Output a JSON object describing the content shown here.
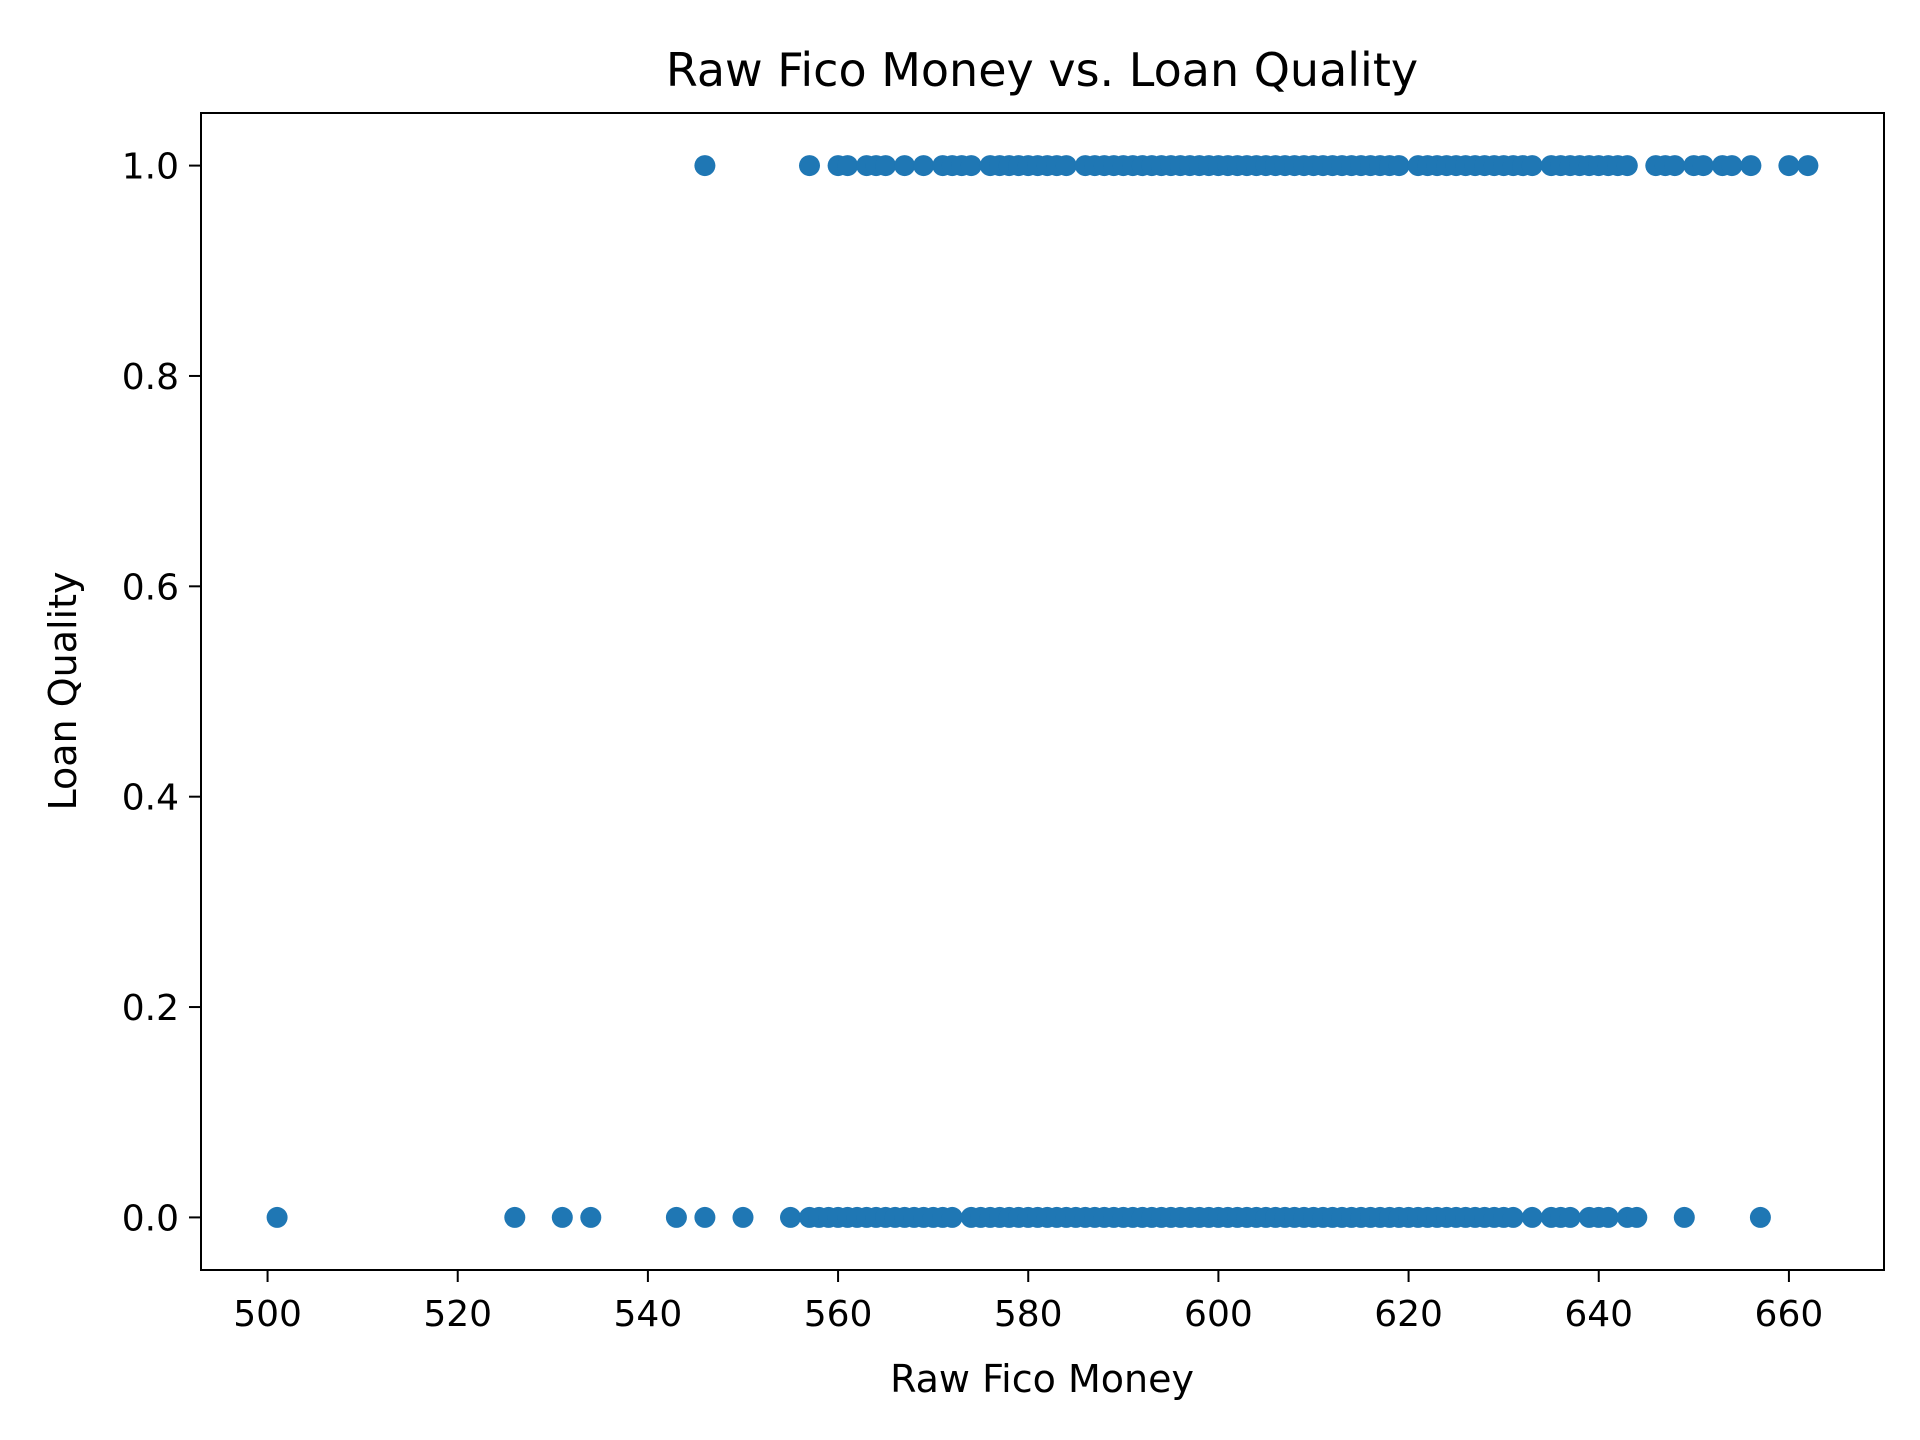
{
  "chart_data": {
    "type": "scatter",
    "title": "Raw Fico Money vs. Loan Quality",
    "xlabel": "Raw Fico Money",
    "ylabel": "Loan Quality",
    "xlim": [
      493,
      670
    ],
    "ylim": [
      -0.05,
      1.05
    ],
    "xticks": [
      500,
      520,
      540,
      560,
      580,
      600,
      620,
      640,
      660
    ],
    "yticks": [
      0.0,
      0.2,
      0.4,
      0.6,
      0.8,
      1.0
    ],
    "xtick_labels": [
      "500",
      "520",
      "540",
      "560",
      "580",
      "600",
      "620",
      "640",
      "660"
    ],
    "ytick_labels": [
      "0.0",
      "0.2",
      "0.4",
      "0.6",
      "0.8",
      "1.0"
    ],
    "grid": false,
    "marker_color": "#1f77b4",
    "series": [
      {
        "values_y": 1,
        "x": [
          546,
          557,
          560,
          561,
          563,
          564,
          565,
          567,
          569,
          571,
          572,
          573,
          574,
          576,
          577,
          578,
          579,
          580,
          581,
          582,
          583,
          584,
          586,
          587,
          588,
          589,
          590,
          591,
          592,
          593,
          594,
          595,
          596,
          597,
          598,
          599,
          600,
          601,
          602,
          603,
          604,
          605,
          606,
          607,
          608,
          609,
          610,
          611,
          612,
          613,
          614,
          615,
          616,
          617,
          618,
          619,
          621,
          622,
          623,
          624,
          625,
          626,
          627,
          628,
          629,
          630,
          631,
          632,
          633,
          635,
          636,
          637,
          638,
          639,
          640,
          641,
          642,
          643,
          646,
          647,
          648,
          650,
          651,
          653,
          654,
          656,
          660,
          662
        ]
      },
      {
        "values_y": 0,
        "x": [
          501,
          526,
          531,
          534,
          543,
          546,
          550,
          555,
          557,
          558,
          559,
          560,
          561,
          562,
          563,
          564,
          565,
          566,
          567,
          568,
          569,
          570,
          571,
          572,
          574,
          575,
          576,
          577,
          578,
          579,
          580,
          581,
          582,
          583,
          584,
          585,
          586,
          587,
          588,
          589,
          590,
          591,
          592,
          593,
          594,
          595,
          596,
          597,
          598,
          599,
          600,
          601,
          602,
          603,
          604,
          605,
          606,
          607,
          608,
          609,
          610,
          611,
          612,
          613,
          614,
          615,
          616,
          617,
          618,
          619,
          620,
          621,
          622,
          623,
          624,
          625,
          626,
          627,
          628,
          629,
          630,
          631,
          633,
          635,
          636,
          637,
          639,
          640,
          641,
          643,
          644,
          649,
          657
        ]
      }
    ]
  }
}
